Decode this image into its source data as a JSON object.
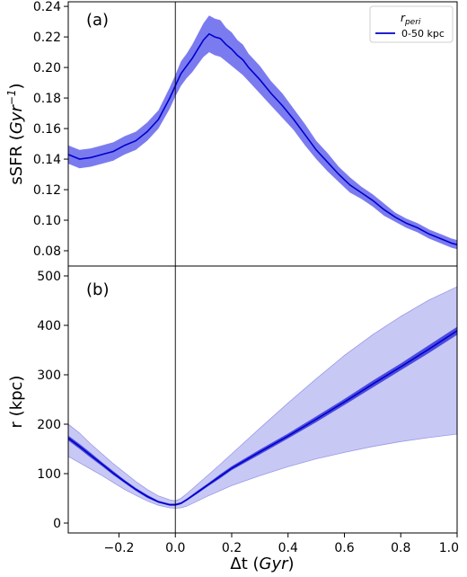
{
  "chart_data": [
    {
      "type": "line",
      "panel_label": "(a)",
      "ylabel_text": "sSFR (",
      "ylabel_unit": "Gyr",
      "ylabel_exp": "−1",
      "ylabel_close": ")",
      "xlim": [
        -0.38,
        1.0
      ],
      "ylim": [
        0.07,
        0.243
      ],
      "yticks": [
        0.08,
        0.1,
        0.12,
        0.14,
        0.16,
        0.18,
        0.2,
        0.22,
        0.24
      ],
      "ytick_labels": [
        "0.08",
        "0.10",
        "0.12",
        "0.14",
        "0.16",
        "0.18",
        "0.20",
        "0.22",
        "0.24"
      ],
      "vline_x": 0.0,
      "legend": {
        "title_main": "r",
        "title_sub": "peri",
        "entry": "0-50 kpc",
        "placement": "top-right"
      },
      "series": [
        {
          "color": "#0000cc",
          "band_color": "#7b7bf0",
          "x": [
            -0.38,
            -0.34,
            -0.3,
            -0.26,
            -0.22,
            -0.18,
            -0.14,
            -0.1,
            -0.06,
            -0.02,
            0.0,
            0.02,
            0.04,
            0.06,
            0.08,
            0.1,
            0.12,
            0.14,
            0.16,
            0.18,
            0.2,
            0.22,
            0.24,
            0.26,
            0.3,
            0.34,
            0.38,
            0.42,
            0.46,
            0.5,
            0.54,
            0.58,
            0.62,
            0.66,
            0.7,
            0.74,
            0.78,
            0.82,
            0.86,
            0.9,
            0.94,
            0.98,
            1.0
          ],
          "y": [
            0.143,
            0.14,
            0.141,
            0.143,
            0.145,
            0.149,
            0.152,
            0.158,
            0.166,
            0.18,
            0.188,
            0.196,
            0.201,
            0.206,
            0.212,
            0.218,
            0.222,
            0.22,
            0.219,
            0.215,
            0.212,
            0.208,
            0.205,
            0.2,
            0.192,
            0.183,
            0.175,
            0.166,
            0.156,
            0.146,
            0.138,
            0.13,
            0.123,
            0.118,
            0.113,
            0.107,
            0.102,
            0.098,
            0.095,
            0.091,
            0.088,
            0.085,
            0.084
          ],
          "band_halfwidth": [
            0.006,
            0.006,
            0.006,
            0.006,
            0.006,
            0.006,
            0.006,
            0.006,
            0.006,
            0.007,
            0.007,
            0.008,
            0.008,
            0.009,
            0.01,
            0.011,
            0.012,
            0.012,
            0.012,
            0.011,
            0.011,
            0.01,
            0.01,
            0.009,
            0.009,
            0.008,
            0.008,
            0.007,
            0.007,
            0.006,
            0.006,
            0.005,
            0.005,
            0.004,
            0.004,
            0.004,
            0.003,
            0.003,
            0.003,
            0.003,
            0.003,
            0.003,
            0.003
          ]
        }
      ]
    },
    {
      "type": "line",
      "panel_label": "(b)",
      "ylabel": "r (kpc)",
      "xlabel_prefix": "Δt (",
      "xlabel_unit": "Gyr",
      "xlabel_suffix": ")",
      "xlim": [
        -0.38,
        1.0
      ],
      "ylim": [
        -20,
        520
      ],
      "yticks": [
        0,
        100,
        200,
        300,
        400,
        500
      ],
      "ytick_labels": [
        "0",
        "100",
        "200",
        "300",
        "400",
        "500"
      ],
      "xticks": [
        -0.2,
        0.0,
        0.2,
        0.4,
        0.6,
        0.8,
        1.0
      ],
      "xtick_labels": [
        "−0.2",
        "0.0",
        "0.2",
        "0.4",
        "0.6",
        "0.8",
        "1.0"
      ],
      "vline_x": 0.0,
      "series": [
        {
          "color": "#0000cc",
          "inner_band_color": "#4a4ae0",
          "outer_band_color": "#c8c8f5",
          "x": [
            -0.38,
            -0.34,
            -0.3,
            -0.26,
            -0.22,
            -0.18,
            -0.14,
            -0.1,
            -0.06,
            -0.02,
            0.0,
            0.02,
            0.04,
            0.08,
            0.12,
            0.16,
            0.2,
            0.3,
            0.4,
            0.5,
            0.6,
            0.7,
            0.8,
            0.9,
            1.0
          ],
          "y": [
            172,
            155,
            137,
            119,
            101,
            84,
            68,
            54,
            43,
            37,
            37,
            40,
            47,
            63,
            79,
            95,
            111,
            144,
            176,
            210,
            245,
            281,
            316,
            352,
            389
          ],
          "inner_halfwidth": [
            5,
            5,
            5,
            4,
            4,
            3,
            3,
            3,
            2,
            2,
            2,
            2,
            2,
            3,
            3,
            4,
            4,
            5,
            5,
            6,
            6,
            7,
            7,
            8,
            8
          ],
          "outer_lower": [
            135,
            122,
            109,
            96,
            82,
            68,
            56,
            45,
            36,
            31,
            30,
            31,
            34,
            45,
            56,
            66,
            76,
            96,
            114,
            130,
            143,
            155,
            165,
            173,
            180
          ],
          "outer_upper": [
            200,
            182,
            160,
            140,
            120,
            102,
            84,
            68,
            55,
            47,
            45,
            50,
            59,
            79,
            99,
            119,
            140,
            192,
            243,
            292,
            339,
            381,
            418,
            451,
            478
          ]
        }
      ]
    }
  ]
}
